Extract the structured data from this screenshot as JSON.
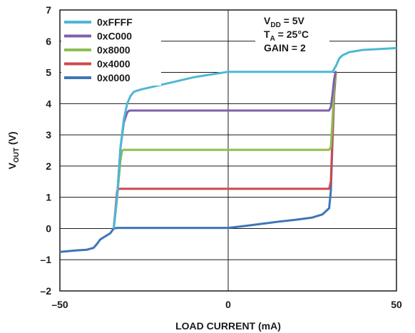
{
  "chart_data": {
    "type": "line",
    "xlabel": "LOAD CURRENT (mA)",
    "ylabel_main": "V",
    "ylabel_sub": "OUT",
    "ylabel_unit": " (V)",
    "xlim": [
      -50,
      50
    ],
    "ylim": [
      -2,
      7
    ],
    "xticks": [
      -50,
      0,
      50
    ],
    "xtick_labels": [
      "–50",
      "0",
      "50"
    ],
    "yticks": [
      -2,
      -1,
      0,
      1,
      2,
      3,
      4,
      5,
      6,
      7
    ],
    "ytick_labels": [
      "–2",
      "–1",
      "0",
      "1",
      "2",
      "3",
      "4",
      "5",
      "6",
      "7"
    ],
    "grid": true,
    "legend_position": "top-left",
    "annotations": {
      "vdd": {
        "main": "V",
        "sub": "DD",
        "rest": " = 5V"
      },
      "ta": {
        "main": "T",
        "sub": "A",
        "rest": " = 25°C"
      },
      "gain": {
        "main": "GAIN = 2",
        "sub": "",
        "rest": ""
      }
    },
    "series": [
      {
        "name": "0xFFFF",
        "color": "#4fb7d3",
        "x": [
          -34,
          -33,
          -32,
          -31,
          -30,
          -29,
          -28,
          -26,
          -20,
          -10,
          0,
          10,
          20,
          30,
          31,
          32,
          33,
          34,
          36,
          40,
          45,
          50
        ],
        "y": [
          0,
          1.0,
          2.6,
          3.5,
          4.0,
          4.25,
          4.38,
          4.45,
          4.6,
          4.85,
          5.02,
          5.02,
          5.02,
          5.02,
          5.02,
          5.2,
          5.45,
          5.55,
          5.65,
          5.72,
          5.75,
          5.78
        ]
      },
      {
        "name": "0xC000",
        "color": "#7f5fac",
        "x": [
          -34,
          -33,
          -32,
          -31,
          -30,
          -29.5,
          -29,
          -20,
          -10,
          0,
          10,
          20,
          30,
          30.5,
          31,
          31.5,
          32
        ],
        "y": [
          0,
          1.0,
          2.6,
          3.4,
          3.72,
          3.77,
          3.78,
          3.78,
          3.78,
          3.78,
          3.78,
          3.78,
          3.78,
          3.9,
          4.3,
          4.8,
          5.05
        ]
      },
      {
        "name": "0x8000",
        "color": "#8fbd4f",
        "x": [
          -34,
          -33,
          -32,
          -31.5,
          -31,
          -20,
          -10,
          0,
          10,
          20,
          30,
          30.5,
          31,
          31.5,
          32
        ],
        "y": [
          0,
          1.0,
          2.2,
          2.5,
          2.52,
          2.52,
          2.52,
          2.52,
          2.52,
          2.52,
          2.52,
          2.6,
          3.5,
          4.6,
          5.02
        ]
      },
      {
        "name": "0x4000",
        "color": "#cc4a4d",
        "x": [
          -34,
          -33.5,
          -33,
          -32.5,
          -20,
          -10,
          0,
          10,
          20,
          30,
          30.5,
          31,
          31.5,
          32
        ],
        "y": [
          0,
          0.6,
          1.2,
          1.27,
          1.27,
          1.27,
          1.27,
          1.27,
          1.27,
          1.27,
          1.5,
          3.0,
          4.5,
          5.0
        ]
      },
      {
        "name": "0x0000",
        "color": "#3f74b8",
        "x": [
          -50,
          -45,
          -42,
          -40,
          -39,
          -38,
          -36.5,
          -35,
          -34,
          -33,
          -20,
          -10,
          0,
          5,
          10,
          15,
          20,
          25,
          28,
          30,
          30.5,
          31,
          31.5,
          32
        ],
        "y": [
          -0.75,
          -0.7,
          -0.68,
          -0.62,
          -0.5,
          -0.35,
          -0.25,
          -0.15,
          0.0,
          0.02,
          0.02,
          0.02,
          0.02,
          0.08,
          0.15,
          0.22,
          0.28,
          0.35,
          0.45,
          0.65,
          1.2,
          2.8,
          4.3,
          5.0
        ]
      }
    ]
  }
}
